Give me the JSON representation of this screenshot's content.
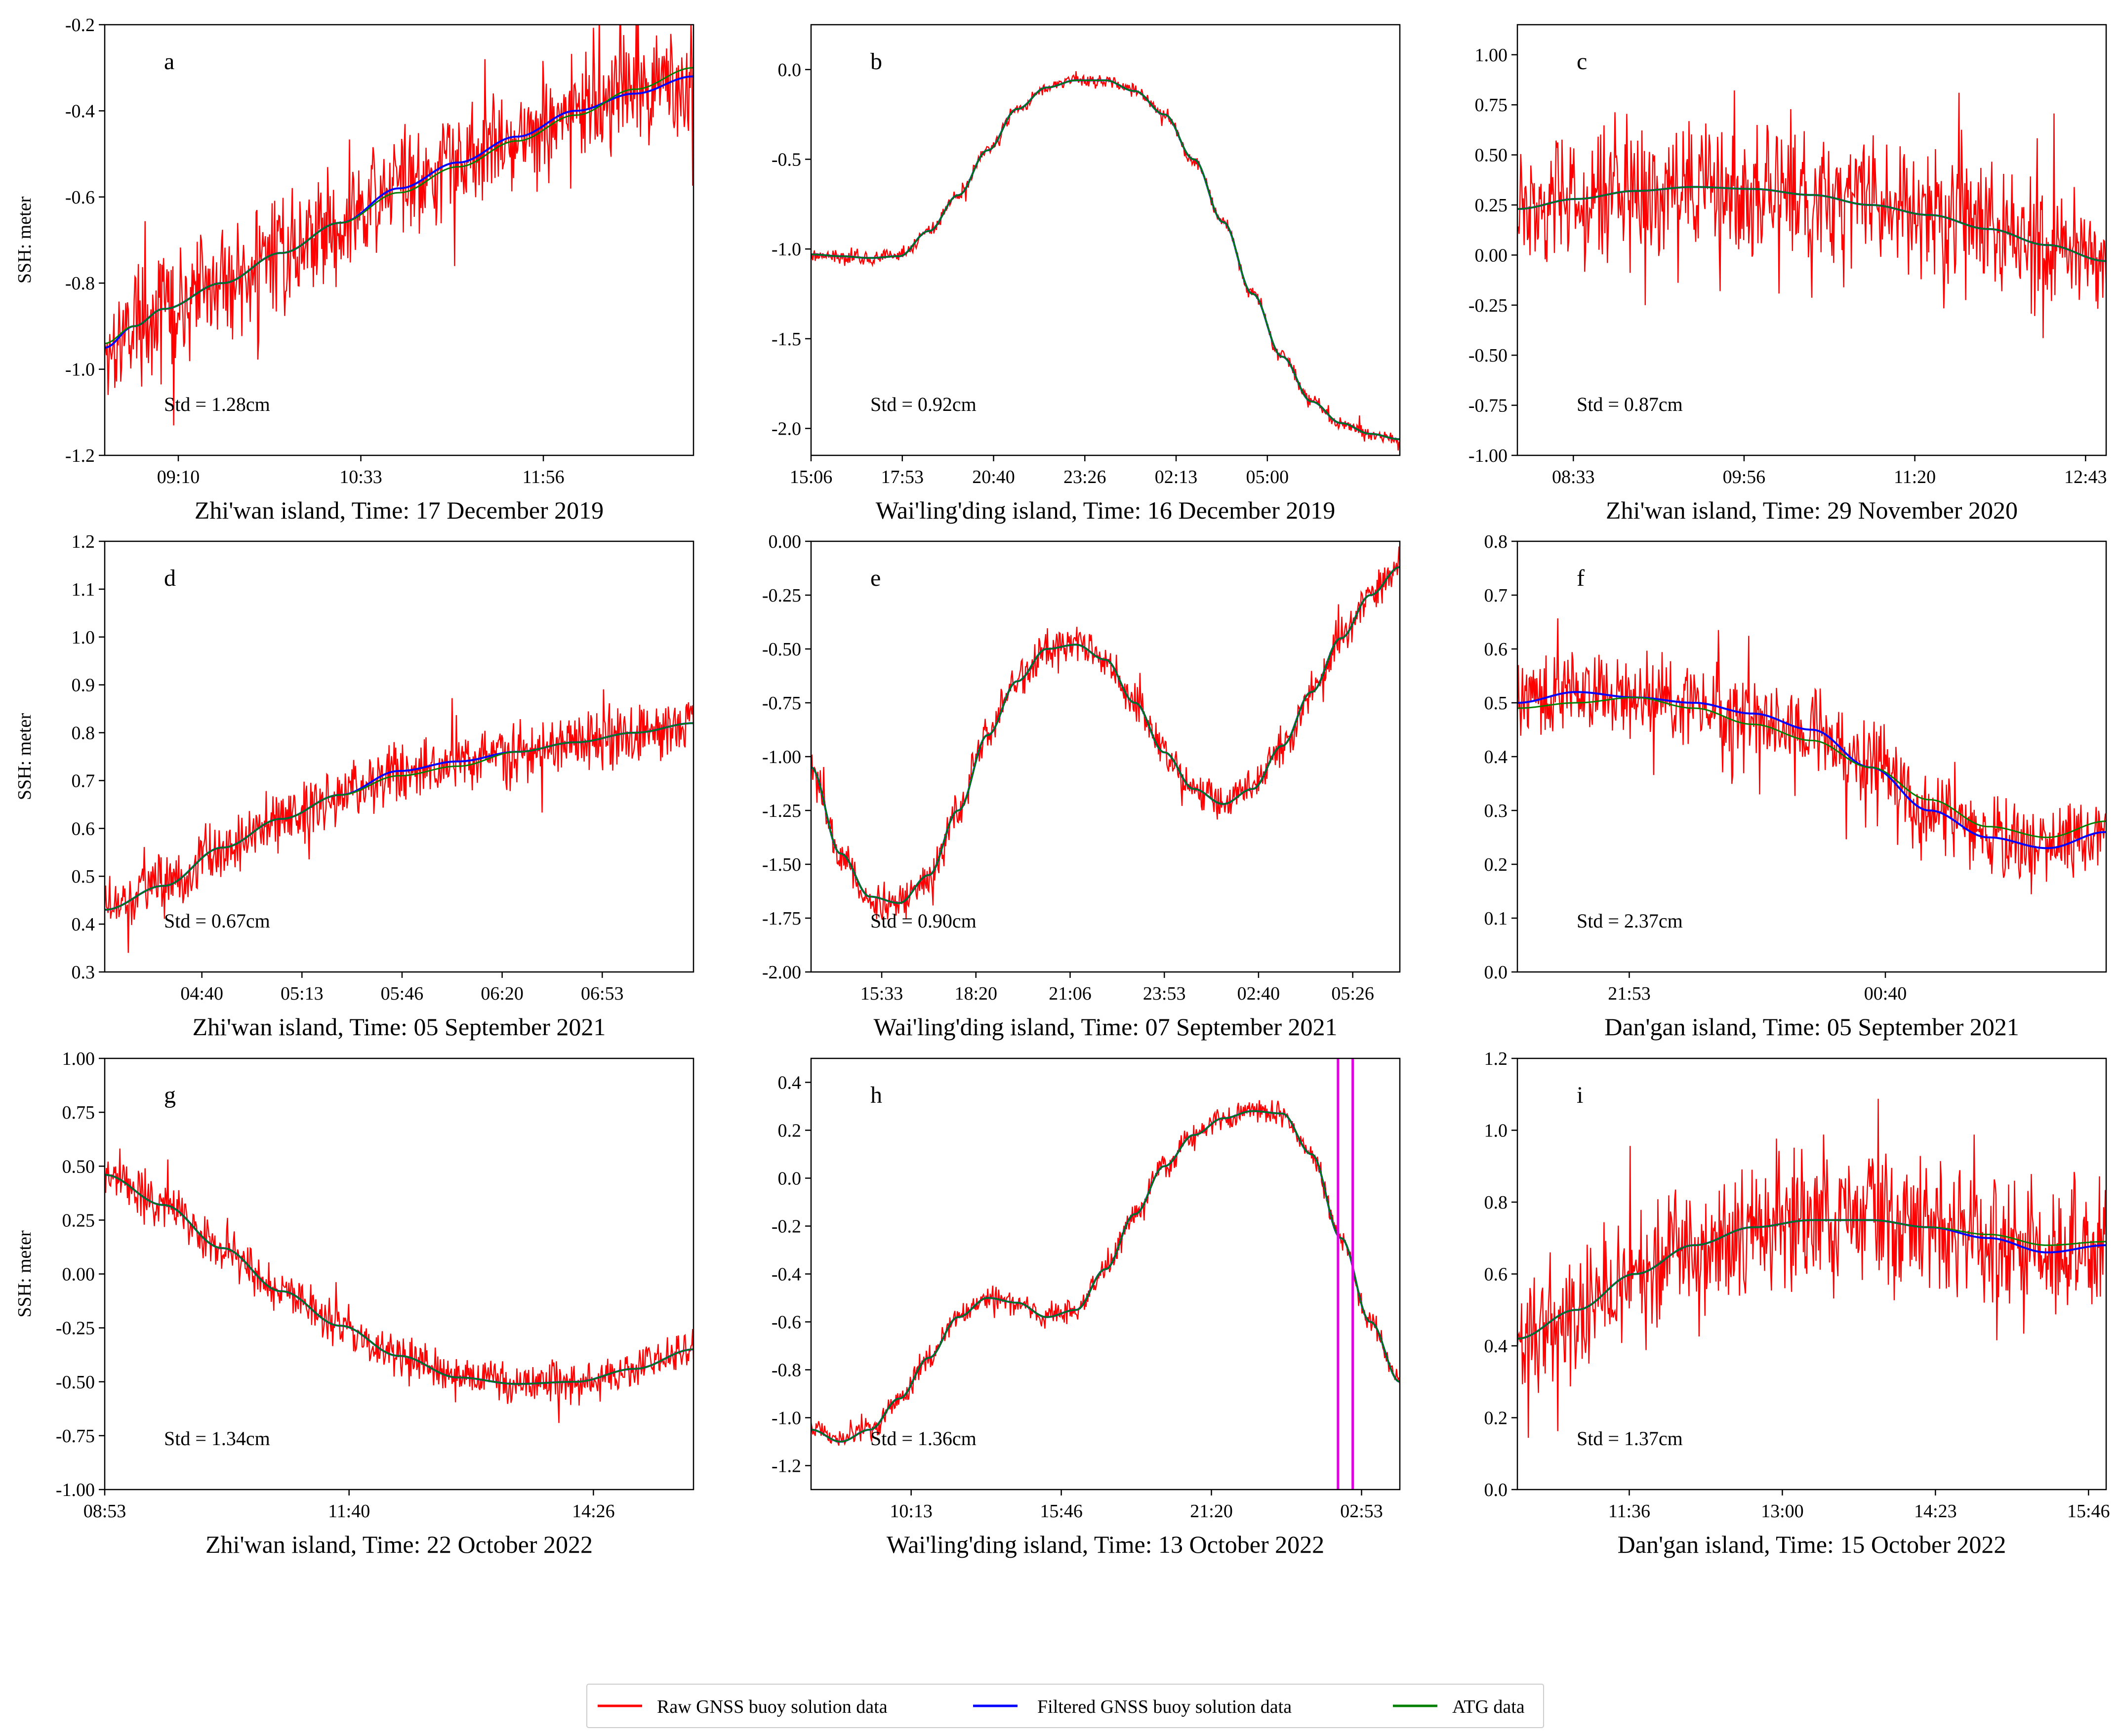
{
  "colors": {
    "raw": "#ff0000",
    "filtered": "#0000ff",
    "atg": "#008000",
    "marker": "#e000e0",
    "axis": "#000000"
  },
  "legend": {
    "raw": "Raw GNSS buoy solution data",
    "filtered": "Filtered GNSS buoy solution data",
    "atg": "ATG data"
  },
  "chart_data": [
    {
      "type": "line",
      "letter": "a",
      "ylabel": "SSH: meter",
      "xlabel": "Zhi'wan island, Time: 17 December 2019",
      "std_label": "Std = 1.28cm",
      "xlim": [
        0,
        100
      ],
      "ylim": [
        -1.2,
        -0.2
      ],
      "yticks": [
        -1.2,
        -1.0,
        -0.8,
        -0.6,
        -0.4,
        -0.2
      ],
      "ytick_labels": [
        "-1.2",
        "-1.0",
        "-0.8",
        "-0.6",
        "-0.4",
        "-0.2"
      ],
      "xticks": [
        12.5,
        43.5,
        74.5
      ],
      "xtick_labels": [
        "09:10",
        "10:33",
        "11:56"
      ],
      "noise": 0.12,
      "x": [
        0,
        5,
        10,
        20,
        30,
        40,
        50,
        60,
        70,
        80,
        90,
        100
      ],
      "filtered": [
        -0.95,
        -0.9,
        -0.86,
        -0.8,
        -0.73,
        -0.66,
        -0.58,
        -0.52,
        -0.46,
        -0.4,
        -0.36,
        -0.32
      ],
      "atg": [
        -0.94,
        -0.9,
        -0.86,
        -0.8,
        -0.73,
        -0.66,
        -0.59,
        -0.53,
        -0.47,
        -0.41,
        -0.35,
        -0.3
      ]
    },
    {
      "type": "line",
      "letter": "b",
      "ylabel": "",
      "xlabel": "Wai'ling'ding island, Time: 16 December 2019",
      "std_label": "Std = 0.92cm",
      "xlim": [
        0,
        100
      ],
      "ylim": [
        -2.15,
        0.25
      ],
      "yticks": [
        -2.0,
        -1.5,
        -1.0,
        -0.5,
        0.0
      ],
      "ytick_labels": [
        "-2.0",
        "-1.5",
        "-1.0",
        "-0.5",
        "0.0"
      ],
      "xticks": [
        0,
        15.5,
        31,
        46.5,
        62,
        77.5
      ],
      "xtick_labels": [
        "15:06",
        "17:53",
        "20:40",
        "23:26",
        "02:13",
        "05:00"
      ],
      "noise": 0.035,
      "x": [
        0,
        5,
        10,
        15,
        20,
        25,
        30,
        35,
        40,
        45,
        50,
        55,
        60,
        65,
        70,
        75,
        80,
        85,
        90,
        95,
        100
      ],
      "filtered": [
        -1.03,
        -1.04,
        -1.05,
        -1.04,
        -0.9,
        -0.7,
        -0.45,
        -0.22,
        -0.1,
        -0.06,
        -0.06,
        -0.12,
        -0.25,
        -0.5,
        -0.85,
        -1.25,
        -1.6,
        -1.85,
        -1.97,
        -2.03,
        -2.06
      ],
      "atg": [
        -1.03,
        -1.04,
        -1.05,
        -1.04,
        -0.9,
        -0.7,
        -0.45,
        -0.22,
        -0.1,
        -0.06,
        -0.06,
        -0.12,
        -0.25,
        -0.5,
        -0.85,
        -1.25,
        -1.6,
        -1.85,
        -1.97,
        -2.03,
        -2.06
      ]
    },
    {
      "type": "line",
      "letter": "c",
      "ylabel": "",
      "xlabel": "Zhi'wan island, Time: 29 November 2020",
      "std_label": "Std = 0.87cm",
      "xlim": [
        0,
        100
      ],
      "ylim": [
        -1.0,
        1.15
      ],
      "yticks": [
        -1.0,
        -0.75,
        -0.5,
        -0.25,
        0.0,
        0.25,
        0.5,
        0.75,
        1.0
      ],
      "ytick_labels": [
        "-1.00",
        "-0.75",
        "-0.50",
        "-0.25",
        "0.00",
        "0.25",
        "0.50",
        "0.75",
        "1.00"
      ],
      "xticks": [
        9.5,
        38.5,
        67.5,
        96.5
      ],
      "xtick_labels": [
        "08:33",
        "09:56",
        "11:20",
        "12:43"
      ],
      "noise": 0.3,
      "x": [
        0,
        10,
        20,
        30,
        40,
        50,
        60,
        70,
        80,
        90,
        100
      ],
      "filtered": [
        0.23,
        0.28,
        0.32,
        0.34,
        0.33,
        0.3,
        0.25,
        0.2,
        0.13,
        0.05,
        -0.03
      ],
      "atg": [
        0.23,
        0.28,
        0.32,
        0.34,
        0.33,
        0.3,
        0.25,
        0.2,
        0.13,
        0.05,
        -0.03
      ]
    },
    {
      "type": "line",
      "letter": "d",
      "ylabel": "SSH: meter",
      "xlabel": "Zhi'wan island, Time: 05 September 2021",
      "std_label": "Std = 0.67cm",
      "xlim": [
        0,
        100
      ],
      "ylim": [
        0.3,
        1.2
      ],
      "yticks": [
        0.3,
        0.4,
        0.5,
        0.6,
        0.7,
        0.8,
        0.9,
        1.0,
        1.1,
        1.2
      ],
      "ytick_labels": [
        "0.3",
        "0.4",
        "0.5",
        "0.6",
        "0.7",
        "0.8",
        "0.9",
        "1.0",
        "1.1",
        "1.2"
      ],
      "xticks": [
        16.5,
        33.5,
        50.5,
        67.5,
        84.5
      ],
      "xtick_labels": [
        "04:40",
        "05:13",
        "05:46",
        "06:20",
        "06:53"
      ],
      "noise": 0.06,
      "x": [
        0,
        10,
        20,
        30,
        40,
        50,
        60,
        70,
        80,
        90,
        100
      ],
      "filtered": [
        0.43,
        0.48,
        0.56,
        0.62,
        0.67,
        0.72,
        0.74,
        0.76,
        0.78,
        0.8,
        0.82
      ],
      "atg": [
        0.43,
        0.48,
        0.56,
        0.62,
        0.67,
        0.71,
        0.73,
        0.76,
        0.78,
        0.8,
        0.82
      ]
    },
    {
      "type": "line",
      "letter": "e",
      "ylabel": "",
      "xlabel": "Wai'ling'ding island, Time: 07 September 2021",
      "std_label": "Std = 0.90cm",
      "xlim": [
        0,
        100
      ],
      "ylim": [
        -2.0,
        0.0
      ],
      "yticks": [
        -2.0,
        -1.75,
        -1.5,
        -1.25,
        -1.0,
        -0.75,
        -0.5,
        -0.25,
        0.0
      ],
      "ytick_labels": [
        "-2.00",
        "-1.75",
        "-1.50",
        "-1.25",
        "-1.00",
        "-0.75",
        "-0.50",
        "-0.25",
        "0.00"
      ],
      "xticks": [
        12,
        28,
        44,
        60,
        76,
        92
      ],
      "xtick_labels": [
        "15:33",
        "18:20",
        "21:06",
        "23:53",
        "02:40",
        "05:26"
      ],
      "noise": 0.08,
      "x": [
        0,
        5,
        10,
        15,
        20,
        25,
        30,
        35,
        40,
        45,
        50,
        55,
        60,
        65,
        70,
        75,
        80,
        85,
        90,
        95,
        100
      ],
      "filtered": [
        -1.05,
        -1.45,
        -1.65,
        -1.68,
        -1.55,
        -1.25,
        -0.9,
        -0.65,
        -0.5,
        -0.48,
        -0.55,
        -0.75,
        -0.98,
        -1.15,
        -1.22,
        -1.15,
        -0.95,
        -0.7,
        -0.45,
        -0.25,
        -0.12
      ],
      "atg": [
        -1.05,
        -1.45,
        -1.65,
        -1.68,
        -1.55,
        -1.25,
        -0.9,
        -0.65,
        -0.5,
        -0.48,
        -0.55,
        -0.75,
        -0.98,
        -1.15,
        -1.22,
        -1.15,
        -0.95,
        -0.7,
        -0.45,
        -0.25,
        -0.12
      ]
    },
    {
      "type": "line",
      "letter": "f",
      "ylabel": "",
      "xlabel": "Dan'gan island, Time: 05 September 2021",
      "std_label": "Std = 2.37cm",
      "xlim": [
        0,
        100
      ],
      "ylim": [
        0.0,
        0.8
      ],
      "yticks": [
        0.0,
        0.1,
        0.2,
        0.3,
        0.4,
        0.5,
        0.6,
        0.7,
        0.8
      ],
      "ytick_labels": [
        "0.0",
        "0.1",
        "0.2",
        "0.3",
        "0.4",
        "0.5",
        "0.6",
        "0.7",
        "0.8"
      ],
      "xticks": [
        19,
        62.5
      ],
      "xtick_labels": [
        "21:53",
        "00:40"
      ],
      "noise": 0.07,
      "x": [
        0,
        10,
        20,
        30,
        40,
        50,
        60,
        70,
        80,
        90,
        100
      ],
      "filtered": [
        0.5,
        0.52,
        0.51,
        0.5,
        0.48,
        0.45,
        0.38,
        0.3,
        0.25,
        0.23,
        0.26
      ],
      "atg": [
        0.49,
        0.5,
        0.51,
        0.49,
        0.46,
        0.43,
        0.38,
        0.32,
        0.27,
        0.25,
        0.28
      ]
    },
    {
      "type": "line",
      "letter": "g",
      "ylabel": "SSH: meter",
      "xlabel": "Zhi'wan island, Time: 22 October 2022",
      "std_label": "Std = 1.34cm",
      "xlim": [
        0,
        100
      ],
      "ylim": [
        -1.0,
        1.0
      ],
      "yticks": [
        -1.0,
        -0.75,
        -0.5,
        -0.25,
        0.0,
        0.25,
        0.5,
        0.75,
        1.0
      ],
      "ytick_labels": [
        "-1.00",
        "-0.75",
        "-0.50",
        "-0.25",
        "0.00",
        "0.25",
        "0.50",
        "0.75",
        "1.00"
      ],
      "xticks": [
        0,
        41.5,
        83
      ],
      "xtick_labels": [
        "08:53",
        "11:40",
        "14:26"
      ],
      "noise": 0.09,
      "x": [
        0,
        10,
        20,
        30,
        40,
        50,
        60,
        70,
        80,
        90,
        100
      ],
      "filtered": [
        0.46,
        0.32,
        0.12,
        -0.08,
        -0.24,
        -0.38,
        -0.48,
        -0.51,
        -0.5,
        -0.44,
        -0.35
      ],
      "atg": [
        0.46,
        0.32,
        0.12,
        -0.08,
        -0.24,
        -0.38,
        -0.48,
        -0.51,
        -0.5,
        -0.44,
        -0.35
      ]
    },
    {
      "type": "line",
      "letter": "h",
      "ylabel": "",
      "xlabel": "Wai'ling'ding island, Time: 13 October 2022",
      "std_label": "Std = 1.36cm",
      "xlim": [
        0,
        100
      ],
      "ylim": [
        -1.3,
        0.5
      ],
      "yticks": [
        -1.2,
        -1.0,
        -0.8,
        -0.6,
        -0.4,
        -0.2,
        0.0,
        0.2,
        0.4
      ],
      "ytick_labels": [
        "-1.2",
        "-1.0",
        "-0.8",
        "-0.6",
        "-0.4",
        "-0.2",
        "0.0",
        "0.2",
        "0.4"
      ],
      "xticks": [
        17,
        42.5,
        68,
        93.5
      ],
      "xtick_labels": [
        "10:13",
        "15:46",
        "21:20",
        "02:53"
      ],
      "markers": [
        89.5,
        92
      ],
      "noise": 0.045,
      "x": [
        0,
        5,
        10,
        15,
        20,
        25,
        30,
        35,
        40,
        45,
        50,
        55,
        60,
        65,
        70,
        75,
        80,
        85,
        90,
        95,
        100
      ],
      "filtered": [
        -1.05,
        -1.1,
        -1.05,
        -0.92,
        -0.75,
        -0.58,
        -0.5,
        -0.52,
        -0.58,
        -0.55,
        -0.38,
        -0.15,
        0.05,
        0.18,
        0.25,
        0.28,
        0.27,
        0.1,
        -0.25,
        -0.6,
        -0.85
      ],
      "atg": [
        -1.05,
        -1.1,
        -1.05,
        -0.92,
        -0.75,
        -0.58,
        -0.5,
        -0.52,
        -0.58,
        -0.55,
        -0.38,
        -0.15,
        0.05,
        0.18,
        0.25,
        0.28,
        0.27,
        0.1,
        -0.25,
        -0.6,
        -0.85
      ]
    },
    {
      "type": "line",
      "letter": "i",
      "ylabel": "",
      "xlabel": "Dan'gan island, Time: 15 October 2022",
      "std_label": "Std = 1.37cm",
      "xlim": [
        0,
        100
      ],
      "ylim": [
        0.0,
        1.2
      ],
      "yticks": [
        0.0,
        0.2,
        0.4,
        0.6,
        0.8,
        1.0,
        1.2
      ],
      "ytick_labels": [
        "0.0",
        "0.2",
        "0.4",
        "0.6",
        "0.8",
        "1.0",
        "1.2"
      ],
      "xticks": [
        19,
        45,
        71,
        97
      ],
      "xtick_labels": [
        "11:36",
        "13:00",
        "14:23",
        "15:46"
      ],
      "noise": 0.17,
      "x": [
        0,
        10,
        20,
        30,
        40,
        50,
        60,
        70,
        80,
        90,
        100
      ],
      "filtered": [
        0.42,
        0.5,
        0.6,
        0.68,
        0.73,
        0.75,
        0.75,
        0.73,
        0.7,
        0.66,
        0.68
      ],
      "atg": [
        0.42,
        0.5,
        0.6,
        0.68,
        0.73,
        0.75,
        0.75,
        0.73,
        0.71,
        0.68,
        0.69
      ]
    }
  ]
}
